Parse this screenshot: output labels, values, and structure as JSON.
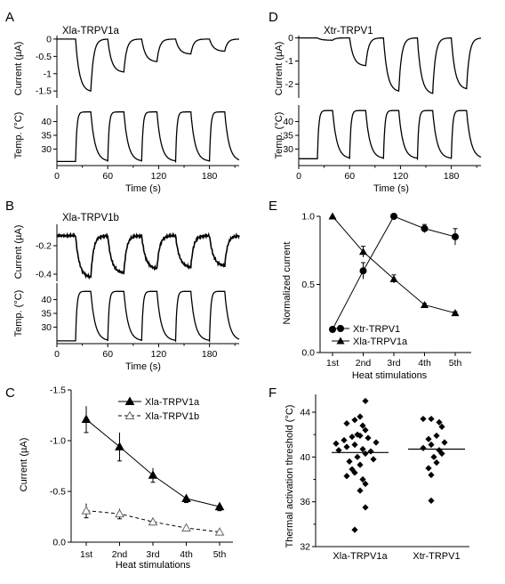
{
  "chart_data": [
    {
      "panel": "A",
      "type": "line",
      "title": "Xla-TRPV1a",
      "current": {
        "ylabel": "Current (µA)",
        "ylim": [
          -1.7,
          0.1
        ],
        "yticks": [
          "0",
          "-0.5",
          "-1",
          "-1.5"
        ],
        "stimuli": [
          {
            "start": 22,
            "end": 40,
            "peak": -1.5
          },
          {
            "start": 60,
            "end": 79,
            "peak": -0.95
          },
          {
            "start": 100,
            "end": 118,
            "peak": -0.65
          },
          {
            "start": 140,
            "end": 158,
            "peak": -0.43
          },
          {
            "start": 180,
            "end": 198,
            "peak": -0.35
          }
        ]
      },
      "temperature": {
        "ylabel": "Temp. (°C)",
        "ylim": [
          24,
          46
        ],
        "yticks": [
          "30",
          "35",
          "40"
        ],
        "base": 25.5,
        "peak": 43.5
      },
      "xlabel": "Time (s)",
      "xlim": [
        0,
        215
      ],
      "xticks": [
        "0",
        "60",
        "120",
        "180"
      ]
    },
    {
      "panel": "D",
      "type": "line",
      "title": "Xtr-TRPV1",
      "current": {
        "ylabel": "Current (µA)",
        "ylim": [
          -2.6,
          0.1
        ],
        "yticks": [
          "0",
          "-1",
          "-2"
        ],
        "stimuli": [
          {
            "start": 22,
            "end": 40,
            "peak": -0.1
          },
          {
            "start": 60,
            "end": 79,
            "peak": -1.2
          },
          {
            "start": 100,
            "end": 118,
            "peak": -2.3
          },
          {
            "start": 140,
            "end": 158,
            "peak": -2.4
          },
          {
            "start": 180,
            "end": 198,
            "peak": -2.2
          }
        ]
      },
      "temperature": {
        "ylabel": "Temp. (°C)",
        "ylim": [
          24,
          46
        ],
        "yticks": [
          "30",
          "35",
          "40"
        ],
        "base": 26.5,
        "peak": 44
      },
      "xlabel": "Time (s)",
      "xlim": [
        0,
        215
      ],
      "xticks": [
        "0",
        "60",
        "120",
        "180"
      ]
    },
    {
      "panel": "B",
      "type": "line",
      "title": "Xla-TRPV1b",
      "current": {
        "ylabel": "Current (µA)",
        "ylim": [
          -0.45,
          -0.05
        ],
        "yticks": [
          "-0.2",
          "-0.4"
        ],
        "baseline": -0.13,
        "drift": -0.13,
        "stimuli": [
          {
            "start": 22,
            "end": 40,
            "peak": -0.42
          },
          {
            "start": 60,
            "end": 79,
            "peak": -0.39
          },
          {
            "start": 100,
            "end": 118,
            "peak": -0.36
          },
          {
            "start": 140,
            "end": 158,
            "peak": -0.35
          },
          {
            "start": 180,
            "end": 198,
            "peak": -0.34
          }
        ]
      },
      "temperature": {
        "ylabel": "Temp. (°C)",
        "ylim": [
          24,
          46
        ],
        "yticks": [
          "30",
          "35",
          "40"
        ],
        "base": 25,
        "peak": 43
      },
      "xlabel": "Time (s)",
      "xlim": [
        0,
        215
      ],
      "xticks": [
        "0",
        "60",
        "120",
        "180"
      ]
    },
    {
      "panel": "E",
      "type": "line",
      "ylabel": "Normalized current",
      "xlabel": "Heat stimulations",
      "categories": [
        "1st",
        "2nd",
        "3rd",
        "4th",
        "5th"
      ],
      "ylim": [
        0,
        1
      ],
      "yticks": [
        "0.0",
        "0.5",
        "1.0"
      ],
      "series": [
        {
          "name": "Xtr-TRPV1",
          "marker": "circle",
          "values": [
            0.17,
            0.6,
            1.0,
            0.91,
            0.85
          ],
          "errors": [
            0,
            0.06,
            0,
            0.03,
            0.06
          ]
        },
        {
          "name": "Xla-TRPV1a",
          "marker": "triangle",
          "values": [
            1.0,
            0.74,
            0.54,
            0.35,
            0.29
          ],
          "errors": [
            0,
            0.04,
            0.03,
            0.01,
            0.01
          ]
        }
      ]
    },
    {
      "panel": "C",
      "type": "line",
      "ylabel": "Current (µA)",
      "xlabel": "Heat stimulations",
      "categories": [
        "1st",
        "2nd",
        "3rd",
        "4th",
        "5th"
      ],
      "ylim": [
        0,
        -1.5
      ],
      "yticks": [
        "-1.5",
        "-1.0",
        "-0.5",
        "0.0"
      ],
      "series": [
        {
          "name": "Xla-TRPV1a",
          "marker": "filled-triangle",
          "line": "solid",
          "values": [
            -1.21,
            -0.94,
            -0.66,
            -0.43,
            -0.35
          ],
          "errors": [
            0.13,
            0.14,
            0.07,
            0.04,
            0.04
          ]
        },
        {
          "name": "Xla-TRPV1b",
          "marker": "open-triangle",
          "line": "dashed",
          "values": [
            -0.31,
            -0.28,
            -0.2,
            -0.14,
            -0.1
          ],
          "errors": [
            0.07,
            0.05,
            0.03,
            0.02,
            0.01
          ]
        }
      ]
    },
    {
      "panel": "F",
      "type": "scatter",
      "ylabel": "Thermal activation threshold (°C)",
      "categories": [
        "Xla-TRPV1a",
        "Xtr-TRPV1"
      ],
      "ylim": [
        32,
        45
      ],
      "yticks": [
        "32",
        "36",
        "40",
        "44"
      ],
      "groups": [
        {
          "name": "Xla-TRPV1a",
          "mean": 40.4,
          "values": [
            45.0,
            43.6,
            43.3,
            43.0,
            42.8,
            42.4,
            42.0,
            41.9,
            41.8,
            41.7,
            41.5,
            41.3,
            41.2,
            41.1,
            40.9,
            40.7,
            40.6,
            40.5,
            40.3,
            40.0,
            39.8,
            39.6,
            39.3,
            38.9,
            38.6,
            38.3,
            38.0,
            37.6,
            37.0,
            35.5,
            33.5
          ]
        },
        {
          "name": "Xtr-TRPV1",
          "mean": 40.7,
          "values": [
            43.4,
            43.4,
            43.1,
            42.7,
            41.9,
            41.6,
            41.3,
            41.1,
            40.8,
            40.6,
            40.3,
            40.0,
            39.5,
            39.0,
            38.4,
            36.1
          ]
        }
      ]
    }
  ]
}
